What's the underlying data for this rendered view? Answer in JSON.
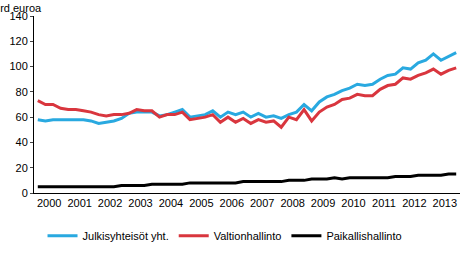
{
  "chart_data": {
    "type": "line",
    "ylabel": "mrd euroa",
    "categories": [
      null,
      "2000",
      null,
      null,
      null,
      "2001",
      null,
      null,
      null,
      "2002",
      null,
      null,
      null,
      "2003",
      null,
      null,
      null,
      "2004",
      null,
      null,
      null,
      "2005",
      null,
      null,
      null,
      "2006",
      null,
      null,
      null,
      "2007",
      null,
      null,
      null,
      "2008",
      null,
      null,
      null,
      "2009",
      null,
      null,
      null,
      "2010",
      null,
      null,
      null,
      "2011",
      null,
      null,
      null,
      "2012",
      null,
      null,
      null,
      "2013",
      null,
      null
    ],
    "series": [
      {
        "name": "Julkisyhteisöt yht.",
        "color": "#29a9e0",
        "values": [
          58,
          57,
          58,
          58,
          58,
          58,
          58,
          57,
          55,
          56,
          57,
          59,
          63,
          64,
          64,
          64,
          61,
          62,
          64,
          66,
          60,
          61,
          62,
          65,
          60,
          64,
          62,
          64,
          60,
          63,
          60,
          61,
          59,
          62,
          64,
          70,
          65,
          72,
          76,
          78,
          81,
          83,
          86,
          85,
          86,
          90,
          93,
          94,
          99,
          98,
          103,
          105,
          110,
          105,
          108,
          111
        ]
      },
      {
        "name": "Valtionhallinto",
        "color": "#d9363e",
        "values": [
          73,
          70,
          70,
          67,
          66,
          66,
          65,
          64,
          62,
          61,
          62,
          62,
          63,
          66,
          65,
          65,
          60,
          62,
          62,
          64,
          58,
          59,
          60,
          62,
          56,
          60,
          56,
          59,
          55,
          58,
          56,
          57,
          52,
          60,
          58,
          66,
          57,
          64,
          68,
          70,
          74,
          75,
          78,
          77,
          77,
          82,
          85,
          86,
          91,
          90,
          93,
          95,
          98,
          94,
          97,
          99
        ]
      },
      {
        "name": "Paikallishallinto",
        "color": "#000000",
        "values": [
          5,
          5,
          5,
          5,
          5,
          5,
          5,
          5,
          5,
          5,
          5,
          6,
          6,
          6,
          6,
          7,
          7,
          7,
          7,
          7,
          8,
          8,
          8,
          8,
          8,
          8,
          8,
          9,
          9,
          9,
          9,
          9,
          9,
          10,
          10,
          10,
          11,
          11,
          11,
          12,
          11,
          12,
          12,
          12,
          12,
          12,
          12,
          13,
          13,
          13,
          14,
          14,
          14,
          14,
          15,
          15
        ]
      }
    ],
    "ylim": [
      0,
      140
    ],
    "yticks": [
      0,
      20,
      40,
      60,
      80,
      100,
      120,
      140
    ],
    "grid": false,
    "legend": "bottom"
  }
}
